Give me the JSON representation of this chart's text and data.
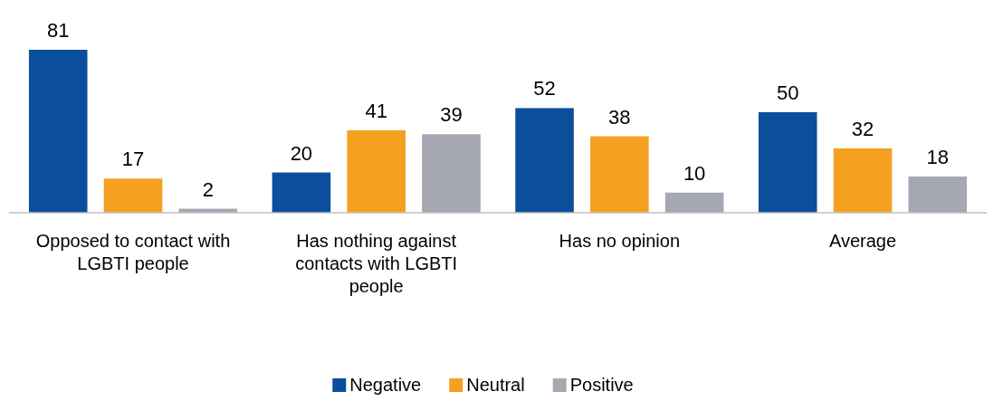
{
  "chart_data": {
    "type": "bar",
    "categories": [
      "Opposed to contact with LGBTI people",
      "Has nothing against contacts with LGBTI people",
      "Has no opinion",
      "Average"
    ],
    "series": [
      {
        "name": "Negative",
        "color": "#0b4f9c",
        "values": [
          81,
          20,
          52,
          50
        ]
      },
      {
        "name": "Neutral",
        "color": "#f5a021",
        "values": [
          17,
          41,
          38,
          32
        ]
      },
      {
        "name": "Positive",
        "color": "#a5a8b3",
        "values": [
          2,
          39,
          10,
          18
        ]
      }
    ],
    "data_labels": true,
    "legend": "bottom"
  }
}
